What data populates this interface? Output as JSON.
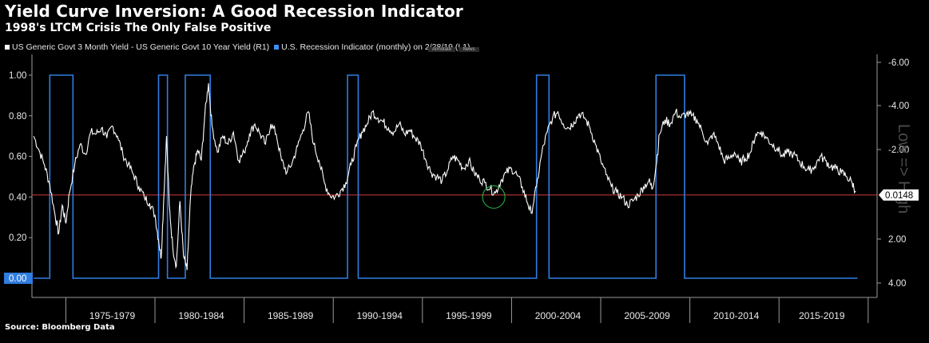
{
  "header": {
    "title": "Yield Curve Inversion: A Good Recession Indicator",
    "subtitle": "1998's LTCM Crisis The Only False Positive"
  },
  "legend": {
    "menu_annotate": "Annotate",
    "menu_news": "News",
    "items": [
      {
        "label": "US Generic Govt 3 Month Yield - US Generic Govt 10 Year Yield (R1)",
        "color": "#ffffff"
      },
      {
        "label": "U.S. Recession Indicator (monthly)  on 2/28/19 (L1)",
        "color": "#3d8fff"
      }
    ]
  },
  "source": "Source: Bloomberg Data",
  "chart_data": {
    "type": "line",
    "x_categories": [
      "1975-1979",
      "1980-1984",
      "1985-1989",
      "1990-1994",
      "1995-1999",
      "2000-2004",
      "2005-2009",
      "2010-2014",
      "2015-2019"
    ],
    "left_axis": {
      "ticks": [
        "1.00",
        "0.80",
        "0.60",
        "0.40",
        "0.20"
      ],
      "range": [
        -0.1,
        1.1
      ],
      "highlight_label": "0.00",
      "highlight_color": "#2f7de1"
    },
    "right_axis": {
      "ticks": [
        "-6.00",
        "-4.00",
        "-2.00",
        "2.00",
        "4.00"
      ],
      "axis_label": "Low => High",
      "inverted": true,
      "current_value_label": "0.0148",
      "current_value": 0.0148
    },
    "reference_line": {
      "left_value": 0.41,
      "color": "#d23a3a"
    },
    "series": [
      {
        "name": "US Generic Govt 3 Month Yield - US Generic Govt 10 Year Yield (R1)",
        "color": "#ffffff",
        "axis": "left",
        "points": [
          [
            1973.0,
            0.7
          ],
          [
            1973.3,
            0.63
          ],
          [
            1973.6,
            0.56
          ],
          [
            1973.9,
            0.46
          ],
          [
            1974.2,
            0.31
          ],
          [
            1974.4,
            0.22
          ],
          [
            1974.6,
            0.36
          ],
          [
            1974.8,
            0.27
          ],
          [
            1975.0,
            0.42
          ],
          [
            1975.3,
            0.56
          ],
          [
            1975.6,
            0.66
          ],
          [
            1975.9,
            0.61
          ],
          [
            1976.2,
            0.72
          ],
          [
            1976.5,
            0.71
          ],
          [
            1976.8,
            0.74
          ],
          [
            1977.1,
            0.69
          ],
          [
            1977.4,
            0.75
          ],
          [
            1977.7,
            0.7
          ],
          [
            1978.0,
            0.61
          ],
          [
            1978.3,
            0.56
          ],
          [
            1978.6,
            0.51
          ],
          [
            1978.9,
            0.45
          ],
          [
            1979.2,
            0.4
          ],
          [
            1979.5,
            0.37
          ],
          [
            1979.8,
            0.31
          ],
          [
            1980.0,
            0.19
          ],
          [
            1980.15,
            0.1
          ],
          [
            1980.3,
            0.41
          ],
          [
            1980.45,
            0.7
          ],
          [
            1980.6,
            0.36
          ],
          [
            1980.8,
            0.15
          ],
          [
            1981.0,
            0.06
          ],
          [
            1981.2,
            0.38
          ],
          [
            1981.4,
            0.11
          ],
          [
            1981.6,
            0.04
          ],
          [
            1981.8,
            0.41
          ],
          [
            1982.0,
            0.56
          ],
          [
            1982.2,
            0.63
          ],
          [
            1982.4,
            0.58
          ],
          [
            1982.6,
            0.81
          ],
          [
            1982.8,
            0.96
          ],
          [
            1983.0,
            0.75
          ],
          [
            1983.3,
            0.62
          ],
          [
            1983.6,
            0.7
          ],
          [
            1983.9,
            0.66
          ],
          [
            1984.2,
            0.72
          ],
          [
            1984.5,
            0.58
          ],
          [
            1984.8,
            0.62
          ],
          [
            1985.1,
            0.71
          ],
          [
            1985.4,
            0.76
          ],
          [
            1985.7,
            0.71
          ],
          [
            1986.0,
            0.66
          ],
          [
            1986.3,
            0.76
          ],
          [
            1986.6,
            0.71
          ],
          [
            1986.9,
            0.58
          ],
          [
            1987.2,
            0.52
          ],
          [
            1987.5,
            0.57
          ],
          [
            1987.8,
            0.65
          ],
          [
            1988.1,
            0.73
          ],
          [
            1988.4,
            0.82
          ],
          [
            1988.7,
            0.66
          ],
          [
            1989.0,
            0.58
          ],
          [
            1989.3,
            0.47
          ],
          [
            1989.6,
            0.41
          ],
          [
            1989.9,
            0.4
          ],
          [
            1990.2,
            0.43
          ],
          [
            1990.5,
            0.47
          ],
          [
            1990.8,
            0.56
          ],
          [
            1991.1,
            0.65
          ],
          [
            1991.4,
            0.72
          ],
          [
            1991.7,
            0.76
          ],
          [
            1992.0,
            0.82
          ],
          [
            1992.3,
            0.79
          ],
          [
            1992.6,
            0.77
          ],
          [
            1992.9,
            0.74
          ],
          [
            1993.2,
            0.72
          ],
          [
            1993.5,
            0.76
          ],
          [
            1993.8,
            0.71
          ],
          [
            1994.1,
            0.73
          ],
          [
            1994.4,
            0.69
          ],
          [
            1994.7,
            0.66
          ],
          [
            1995.0,
            0.58
          ],
          [
            1995.3,
            0.52
          ],
          [
            1995.6,
            0.5
          ],
          [
            1995.9,
            0.48
          ],
          [
            1996.2,
            0.53
          ],
          [
            1996.5,
            0.6
          ],
          [
            1996.8,
            0.58
          ],
          [
            1997.1,
            0.54
          ],
          [
            1997.4,
            0.58
          ],
          [
            1997.7,
            0.52
          ],
          [
            1998.0,
            0.49
          ],
          [
            1998.3,
            0.47
          ],
          [
            1998.6,
            0.44
          ],
          [
            1998.9,
            0.42
          ],
          [
            1999.2,
            0.48
          ],
          [
            1999.5,
            0.52
          ],
          [
            1999.8,
            0.54
          ],
          [
            2000.1,
            0.51
          ],
          [
            2000.4,
            0.45
          ],
          [
            2000.7,
            0.37
          ],
          [
            2000.9,
            0.32
          ],
          [
            2001.2,
            0.45
          ],
          [
            2001.5,
            0.62
          ],
          [
            2001.8,
            0.72
          ],
          [
            2002.1,
            0.79
          ],
          [
            2002.4,
            0.82
          ],
          [
            2002.7,
            0.76
          ],
          [
            2003.0,
            0.74
          ],
          [
            2003.3,
            0.77
          ],
          [
            2003.6,
            0.81
          ],
          [
            2003.9,
            0.79
          ],
          [
            2004.2,
            0.74
          ],
          [
            2004.5,
            0.66
          ],
          [
            2004.8,
            0.58
          ],
          [
            2005.1,
            0.51
          ],
          [
            2005.4,
            0.45
          ],
          [
            2005.7,
            0.42
          ],
          [
            2006.0,
            0.4
          ],
          [
            2006.3,
            0.36
          ],
          [
            2006.6,
            0.38
          ],
          [
            2006.9,
            0.41
          ],
          [
            2007.2,
            0.45
          ],
          [
            2007.5,
            0.48
          ],
          [
            2007.7,
            0.44
          ],
          [
            2007.9,
            0.55
          ],
          [
            2008.1,
            0.71
          ],
          [
            2008.4,
            0.78
          ],
          [
            2008.7,
            0.76
          ],
          [
            2009.0,
            0.82
          ],
          [
            2009.3,
            0.79
          ],
          [
            2009.6,
            0.81
          ],
          [
            2009.9,
            0.8
          ],
          [
            2010.2,
            0.78
          ],
          [
            2010.5,
            0.72
          ],
          [
            2010.8,
            0.66
          ],
          [
            2011.1,
            0.71
          ],
          [
            2011.4,
            0.66
          ],
          [
            2011.7,
            0.58
          ],
          [
            2012.0,
            0.59
          ],
          [
            2012.3,
            0.62
          ],
          [
            2012.6,
            0.57
          ],
          [
            2012.9,
            0.59
          ],
          [
            2013.2,
            0.62
          ],
          [
            2013.5,
            0.71
          ],
          [
            2013.8,
            0.72
          ],
          [
            2014.1,
            0.69
          ],
          [
            2014.4,
            0.66
          ],
          [
            2014.7,
            0.64
          ],
          [
            2015.0,
            0.6
          ],
          [
            2015.3,
            0.62
          ],
          [
            2015.6,
            0.61
          ],
          [
            2015.9,
            0.58
          ],
          [
            2016.2,
            0.55
          ],
          [
            2016.5,
            0.53
          ],
          [
            2016.8,
            0.55
          ],
          [
            2017.1,
            0.6
          ],
          [
            2017.4,
            0.58
          ],
          [
            2017.7,
            0.55
          ],
          [
            2018.0,
            0.54
          ],
          [
            2018.3,
            0.52
          ],
          [
            2018.6,
            0.5
          ],
          [
            2018.9,
            0.47
          ],
          [
            2019.1,
            0.43
          ]
        ]
      },
      {
        "name": "U.S. Recession Indicator (monthly)  on 2/28/19 (L1)",
        "color": "#2f7de1",
        "axis": "left",
        "type": "step",
        "recessions": [
          [
            1973.9,
            1975.2
          ],
          [
            1980.0,
            1980.5
          ],
          [
            1981.5,
            1982.9
          ],
          [
            1990.6,
            1991.2
          ],
          [
            2001.2,
            2001.9
          ],
          [
            2007.9,
            2009.5
          ]
        ],
        "x_range": [
          1973.0,
          2019.2
        ]
      }
    ],
    "annotations": [
      {
        "type": "circle",
        "x": 1998.8,
        "y": 0.4,
        "color": "#2bb84a"
      }
    ],
    "x_range": [
      1972.9,
      2020.3
    ],
    "grid": false,
    "legend_position": "top-left"
  }
}
